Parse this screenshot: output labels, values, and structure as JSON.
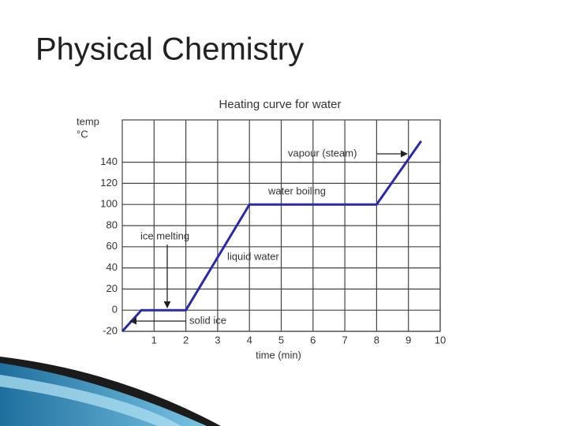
{
  "slide_title": "Physical Chemistry",
  "chart_data": {
    "type": "line",
    "title": "Heating curve for water",
    "x_label": "time (min)",
    "y_label": "temp",
    "y_unit": "°C",
    "series": [
      {
        "name": "water",
        "color": "#2a2aa8",
        "x": [
          0,
          0.6,
          2,
          4,
          8,
          9.4
        ],
        "values": [
          -20,
          0,
          0,
          100,
          100,
          160
        ]
      }
    ],
    "xlim": [
      0,
      10
    ],
    "xticks": [
      1,
      2,
      3,
      4,
      5,
      6,
      7,
      8,
      9,
      10
    ],
    "ylim": [
      -20,
      180
    ],
    "yticks": [
      -20,
      0,
      20,
      40,
      60,
      80,
      100,
      120,
      140
    ],
    "grid": true,
    "annotations": [
      "vapour (steam)",
      "water boiling",
      "ice melting",
      "liquid water",
      "solid ice"
    ]
  }
}
